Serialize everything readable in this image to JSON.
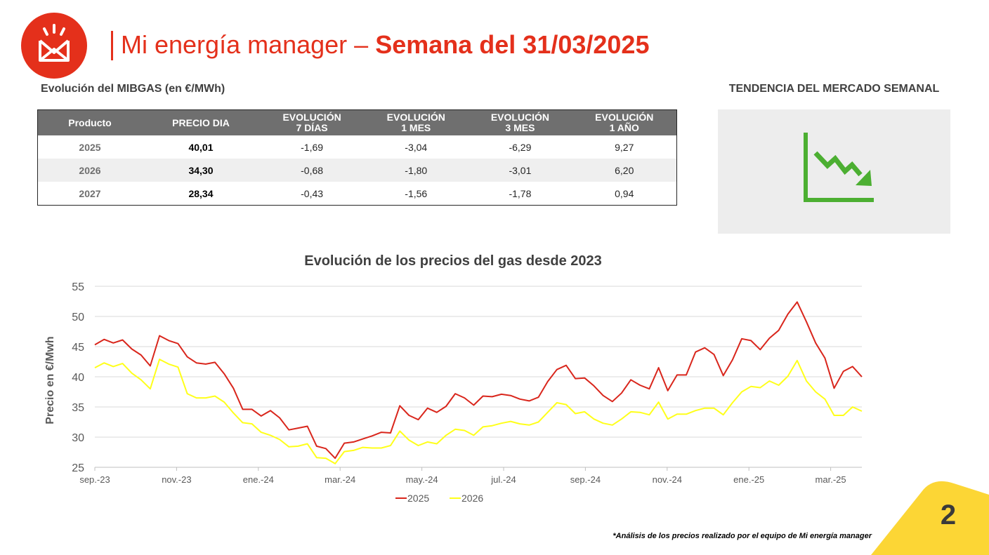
{
  "header": {
    "brand": "Mi energía manager",
    "separator": " – ",
    "week": "Semana del 31/03/2025"
  },
  "table": {
    "heading": "Evolución del MIBGAS (en €/MWh)",
    "columns": [
      {
        "line1": "Producto",
        "line2": ""
      },
      {
        "line1": "PRECIO DIA",
        "line2": ""
      },
      {
        "line1": "EVOLUCIÓN",
        "line2": "7 DÍAS"
      },
      {
        "line1": "EVOLUCIÓN",
        "line2": "1 MES"
      },
      {
        "line1": "EVOLUCIÓN",
        "line2": "3 MES"
      },
      {
        "line1": "EVOLUCIÓN",
        "line2": "1 AÑO"
      }
    ],
    "rows": [
      {
        "product": "2025",
        "price": "40,01",
        "d7": "-1,69",
        "m1": "-3,04",
        "m3": "-6,29",
        "y1": "9,27"
      },
      {
        "product": "2026",
        "price": "34,30",
        "d7": "-0,68",
        "m1": "-1,80",
        "m3": "-3,01",
        "y1": "6,20"
      },
      {
        "product": "2027",
        "price": "28,34",
        "d7": "-0,43",
        "m1": "-1,56",
        "m3": "-1,78",
        "y1": "0,94"
      }
    ]
  },
  "trend": {
    "title": "TENDENCIA DEL MERCADO SEMANAL",
    "icon": "downtrend-chart-icon",
    "color": "#4caf32"
  },
  "chart_data": {
    "type": "line",
    "title": "Evolución de los precios del gas desde 2023",
    "xlabel": "",
    "ylabel": "Precio en €/Mwh",
    "ylim": [
      25,
      55
    ],
    "yticks": [
      25,
      30,
      35,
      40,
      45,
      50,
      55
    ],
    "xtick_labels": [
      "sep.-23",
      "nov.-23",
      "ene.-24",
      "mar.-24",
      "may.-24",
      "jul.-24",
      "sep.-24",
      "nov.-24",
      "ene.-25",
      "mar.-25"
    ],
    "grid": true,
    "legend": "bottom-center",
    "series": [
      {
        "name": "2025",
        "color": "#d9261c",
        "values": [
          45.3,
          46.2,
          45.6,
          46.1,
          44.6,
          43.6,
          41.8,
          46.8,
          46.0,
          45.5,
          43.3,
          42.3,
          42.1,
          42.4,
          40.5,
          38.1,
          34.6,
          34.6,
          33.5,
          34.4,
          33.2,
          31.2,
          31.5,
          31.8,
          28.5,
          28.1,
          26.5,
          29.0,
          29.2,
          29.7,
          30.2,
          30.8,
          30.7,
          35.2,
          33.6,
          32.9,
          34.8,
          34.1,
          35.1,
          37.2,
          36.5,
          35.3,
          36.8,
          36.7,
          37.1,
          36.9,
          36.3,
          36.0,
          36.6,
          39.2,
          41.2,
          41.9,
          39.7,
          39.8,
          38.5,
          36.9,
          35.9,
          37.3,
          39.5,
          38.6,
          38.0,
          41.5,
          37.7,
          40.3,
          40.3,
          44.1,
          44.8,
          43.7,
          40.2,
          42.8,
          46.3,
          46.0,
          44.5,
          46.4,
          47.7,
          50.4,
          52.4,
          49.1,
          45.6,
          43.1,
          38.1,
          40.9,
          41.7,
          40.0
        ]
      },
      {
        "name": "2026",
        "color": "#ffff1a",
        "values": [
          41.5,
          42.3,
          41.7,
          42.2,
          40.6,
          39.5,
          38.0,
          42.9,
          42.1,
          41.6,
          37.2,
          36.5,
          36.5,
          36.8,
          35.8,
          34.0,
          32.4,
          32.2,
          30.8,
          30.3,
          29.6,
          28.4,
          28.5,
          28.9,
          26.6,
          26.5,
          25.6,
          27.6,
          27.8,
          28.3,
          28.2,
          28.2,
          28.6,
          31.0,
          29.5,
          28.6,
          29.2,
          28.9,
          30.3,
          31.3,
          31.1,
          30.3,
          31.7,
          31.9,
          32.3,
          32.6,
          32.2,
          32.0,
          32.5,
          34.1,
          35.7,
          35.4,
          33.9,
          34.2,
          33.0,
          32.3,
          32.0,
          33.0,
          34.2,
          34.1,
          33.7,
          35.8,
          33.0,
          33.8,
          33.8,
          34.4,
          34.8,
          34.8,
          33.7,
          35.7,
          37.5,
          38.4,
          38.2,
          39.3,
          38.6,
          40.1,
          42.7,
          39.3,
          37.5,
          36.3,
          33.6,
          33.6,
          35.0,
          34.3
        ]
      }
    ]
  },
  "footnote": "*Análisis de los precios realizado por el equipo de Mi energía manager",
  "page_number": "2",
  "colors": {
    "accent": "#e4301b",
    "corner": "#fcd635",
    "table_header": "#6f6f6f"
  }
}
